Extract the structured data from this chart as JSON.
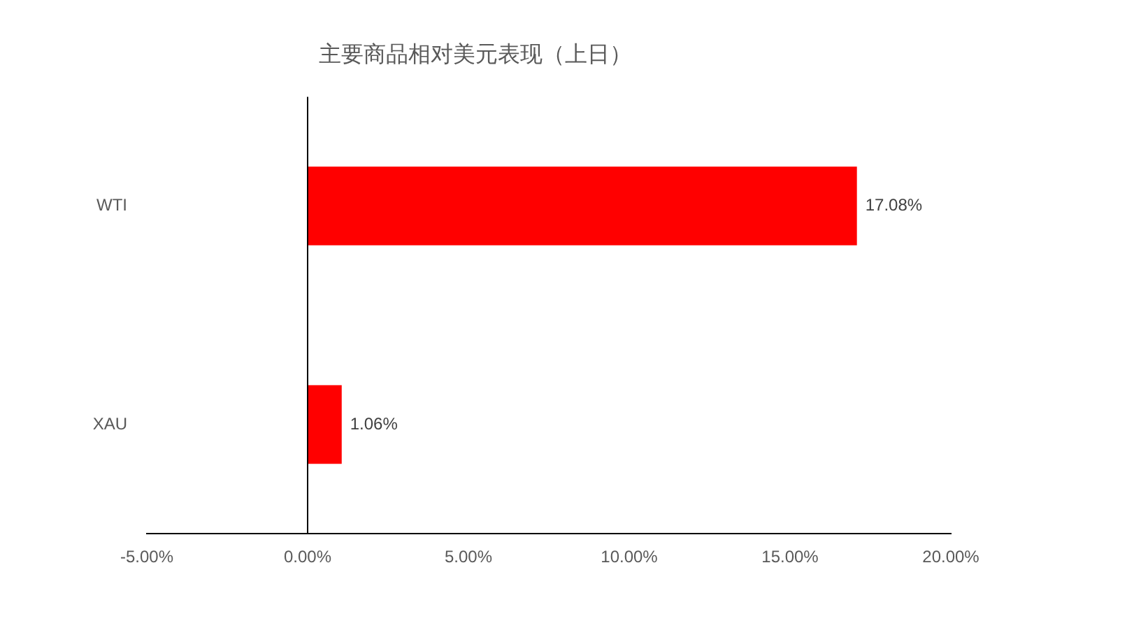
{
  "chart_data": {
    "type": "bar",
    "orientation": "horizontal",
    "title": "主要商品相对美元表现（上日）",
    "categories": [
      "WTI",
      "XAU"
    ],
    "values": [
      17.08,
      1.06
    ],
    "color": "#ff0000",
    "value_labels": [
      "17.08%",
      "1.06%"
    ],
    "xlim": [
      -5,
      20
    ],
    "xticks": [
      {
        "value": -5,
        "label": "-5.00%"
      },
      {
        "value": 0,
        "label": "0.00%"
      },
      {
        "value": 5,
        "label": "5.00%"
      },
      {
        "value": 10,
        "label": "10.00%"
      },
      {
        "value": 15,
        "label": "15.00%"
      },
      {
        "value": 20,
        "label": "20.00%"
      }
    ]
  }
}
